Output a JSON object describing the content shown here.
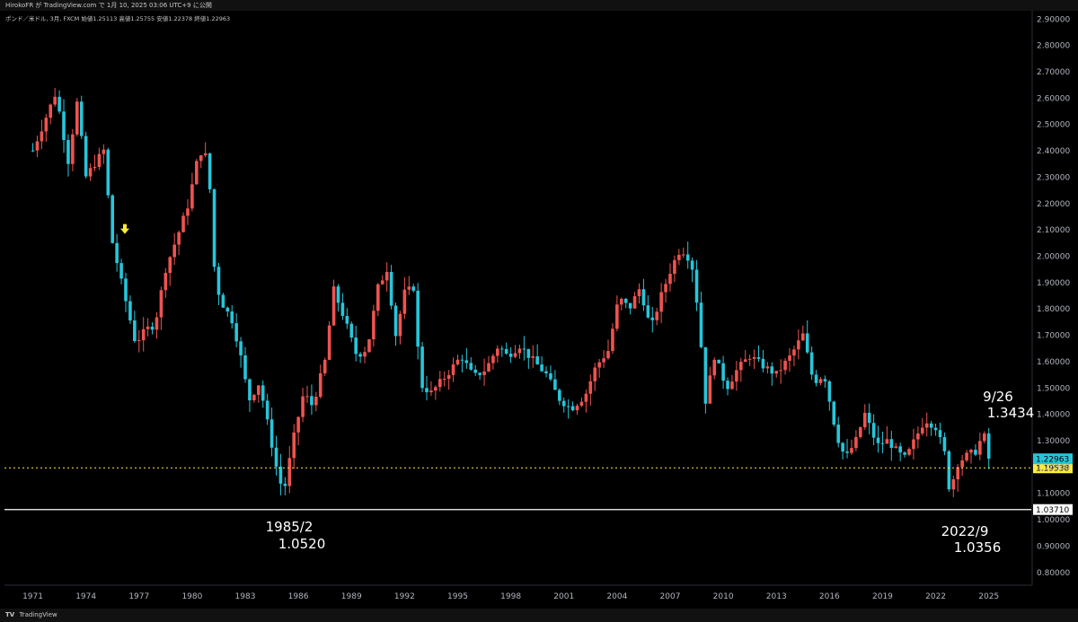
{
  "header": {
    "text": "HirokoFR が TradingView.com で 1月 10, 2025 03:06 UTC+9 に公開"
  },
  "legend": {
    "symbol": "ポンド／米ドル, 3月, FXCM",
    "open": "始値1.25113",
    "high": "高値1.25755",
    "low": "安値1.22378",
    "close": "終値1.22963"
  },
  "footer": {
    "logo": "TV",
    "brand": "TradingView"
  },
  "colors": {
    "up": "#ef5350",
    "down": "#26c6da",
    "background": "#000000",
    "arrow": "#ffeb3b",
    "price_badge": "#26c6da",
    "dotted_badge": "#ffeb3b"
  },
  "chart_data": {
    "type": "candlestick",
    "title": "",
    "xlabel": "",
    "ylabel": "",
    "ylim": [
      0.75,
      2.93
    ],
    "xlim": [
      1969.4,
      2027.4
    ],
    "x_ticks": [
      "1971",
      "1974",
      "1977",
      "1980",
      "1983",
      "1986",
      "1989",
      "1992",
      "1995",
      "1998",
      "2001",
      "2004",
      "2007",
      "2010",
      "2013",
      "2016",
      "2019",
      "2022",
      "2025"
    ],
    "y_ticks": [
      "0.80000",
      "0.90000",
      "1.00000",
      "1.10000",
      "1.20000",
      "1.30000",
      "1.40000",
      "1.50000",
      "1.60000",
      "1.70000",
      "1.80000",
      "1.90000",
      "2.00000",
      "2.10000",
      "2.20000",
      "2.30000",
      "2.40000",
      "2.50000",
      "2.60000",
      "2.70000",
      "2.80000",
      "2.90000"
    ],
    "grid": false,
    "path": [
      [
        1971.0,
        2.4
      ],
      [
        1972.3,
        2.62
      ],
      [
        1973.0,
        2.36
      ],
      [
        1973.5,
        2.58
      ],
      [
        1974.0,
        2.3
      ],
      [
        1975.0,
        2.4
      ],
      [
        1975.5,
        2.05
      ],
      [
        1976.0,
        1.9
      ],
      [
        1976.8,
        1.67
      ],
      [
        1977.4,
        1.72
      ],
      [
        1977.9,
        1.74
      ],
      [
        1978.5,
        1.95
      ],
      [
        1979.3,
        2.1
      ],
      [
        1979.8,
        2.2
      ],
      [
        1980.4,
        2.4
      ],
      [
        1980.9,
        2.37
      ],
      [
        1981.3,
        1.9
      ],
      [
        1981.7,
        1.82
      ],
      [
        1982.3,
        1.75
      ],
      [
        1982.8,
        1.6
      ],
      [
        1983.2,
        1.45
      ],
      [
        1983.8,
        1.52
      ],
      [
        1984.3,
        1.35
      ],
      [
        1984.9,
        1.15
      ],
      [
        1985.2,
        1.11
      ],
      [
        1985.7,
        1.3
      ],
      [
        1986.3,
        1.48
      ],
      [
        1986.8,
        1.43
      ],
      [
        1987.5,
        1.6
      ],
      [
        1988.0,
        1.87
      ],
      [
        1988.5,
        1.78
      ],
      [
        1989.3,
        1.62
      ],
      [
        1989.9,
        1.65
      ],
      [
        1990.5,
        1.88
      ],
      [
        1991.0,
        1.95
      ],
      [
        1991.5,
        1.7
      ],
      [
        1992.0,
        1.86
      ],
      [
        1992.5,
        1.88
      ],
      [
        1992.9,
        1.51
      ],
      [
        1993.5,
        1.48
      ],
      [
        1994.4,
        1.55
      ],
      [
        1995.2,
        1.62
      ],
      [
        1995.9,
        1.54
      ],
      [
        1996.6,
        1.57
      ],
      [
        1997.3,
        1.66
      ],
      [
        1997.8,
        1.62
      ],
      [
        1998.5,
        1.66
      ],
      [
        1999.3,
        1.6
      ],
      [
        2000.0,
        1.55
      ],
      [
        2000.7,
        1.46
      ],
      [
        2001.4,
        1.42
      ],
      [
        2002.2,
        1.47
      ],
      [
        2002.8,
        1.58
      ],
      [
        2003.5,
        1.64
      ],
      [
        2004.1,
        1.84
      ],
      [
        2004.7,
        1.8
      ],
      [
        2005.3,
        1.88
      ],
      [
        2005.9,
        1.72
      ],
      [
        2006.5,
        1.85
      ],
      [
        2007.1,
        1.96
      ],
      [
        2007.6,
        2.03
      ],
      [
        2008.2,
        1.98
      ],
      [
        2008.6,
        1.78
      ],
      [
        2009.0,
        1.45
      ],
      [
        2009.5,
        1.62
      ],
      [
        2010.2,
        1.5
      ],
      [
        2010.8,
        1.57
      ],
      [
        2011.5,
        1.62
      ],
      [
        2012.3,
        1.58
      ],
      [
        2013.0,
        1.55
      ],
      [
        2013.8,
        1.62
      ],
      [
        2014.5,
        1.7
      ],
      [
        2015.1,
        1.52
      ],
      [
        2015.7,
        1.55
      ],
      [
        2016.4,
        1.32
      ],
      [
        2016.9,
        1.23
      ],
      [
        2017.5,
        1.3
      ],
      [
        2018.0,
        1.4
      ],
      [
        2018.7,
        1.28
      ],
      [
        2019.3,
        1.3
      ],
      [
        2019.9,
        1.25
      ],
      [
        2020.3,
        1.23
      ],
      [
        2020.8,
        1.3
      ],
      [
        2021.4,
        1.38
      ],
      [
        2022.0,
        1.35
      ],
      [
        2022.5,
        1.25
      ],
      [
        2022.8,
        1.1
      ],
      [
        2023.2,
        1.21
      ],
      [
        2023.7,
        1.24
      ],
      [
        2024.3,
        1.26
      ],
      [
        2024.7,
        1.33
      ],
      [
        2025.0,
        1.23
      ]
    ],
    "last_price": {
      "value": 1.22963,
      "label": "1.22963"
    },
    "hlines": [
      {
        "value": 1.19538,
        "label": "1.19538",
        "style": "dotted"
      },
      {
        "value": 1.0371,
        "label": "1.03710",
        "style": "solid"
      }
    ],
    "arrow_marker": {
      "x": 1976.2,
      "y": 2.1
    },
    "annotations": [
      {
        "id": "low-1985",
        "line1": "1985/2",
        "line2": "1.0520",
        "x": 1985.2,
        "y": 1.052
      },
      {
        "id": "low-2022",
        "line1": "2022/9",
        "line2": "1.0356",
        "x": 2022.7,
        "y": 1.0356
      },
      {
        "id": "high-2024",
        "line1": "9/26",
        "line2": "1.3434",
        "x": 2024.7,
        "y": 1.3434
      }
    ]
  }
}
